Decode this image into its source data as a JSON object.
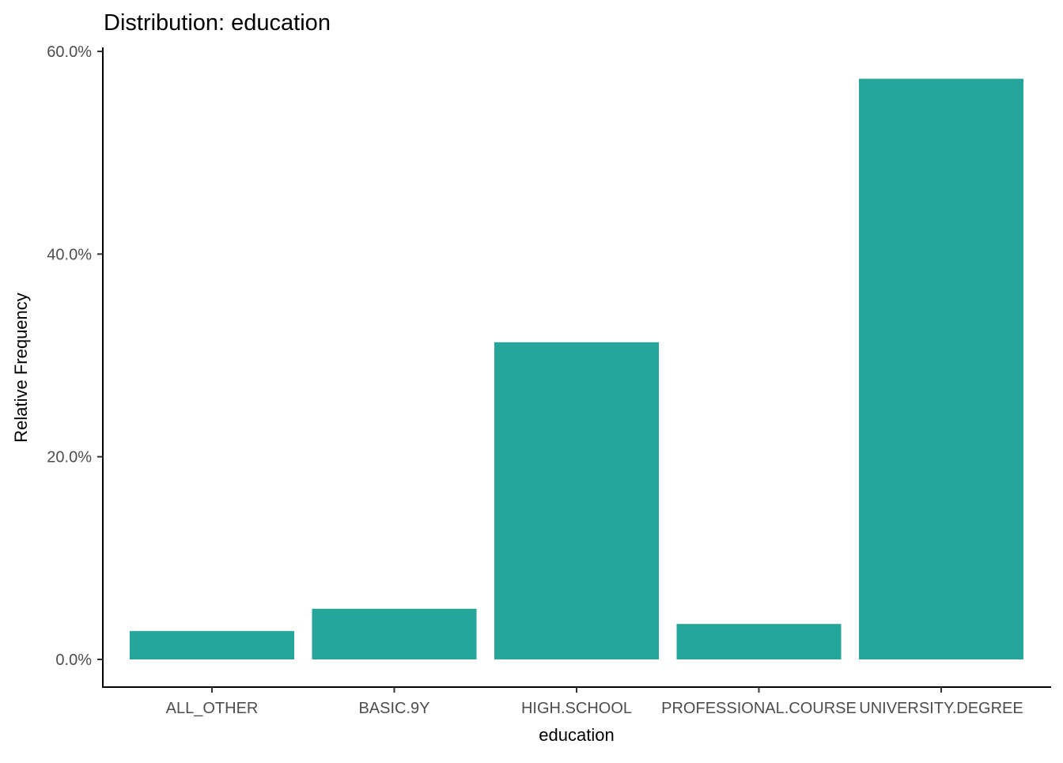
{
  "chart_data": {
    "type": "bar",
    "title": "Distribution: education",
    "xlabel": "education",
    "ylabel": "Relative Frequency",
    "categories": [
      "ALL_OTHER",
      "BASIC.9Y",
      "HIGH.SCHOOL",
      "PROFESSIONAL.COURSE",
      "UNIVERSITY.DEGREE"
    ],
    "values": [
      2.8,
      5.0,
      31.3,
      3.5,
      57.3
    ],
    "value_unit": "percent",
    "ylim": [
      0,
      60
    ],
    "yticks": [
      0,
      20,
      40,
      60
    ],
    "ytick_labels": [
      "0.0%",
      "20.0%",
      "40.0%",
      "60.0%"
    ],
    "bar_color": "#26A69A",
    "grid": false,
    "legend": "none"
  }
}
